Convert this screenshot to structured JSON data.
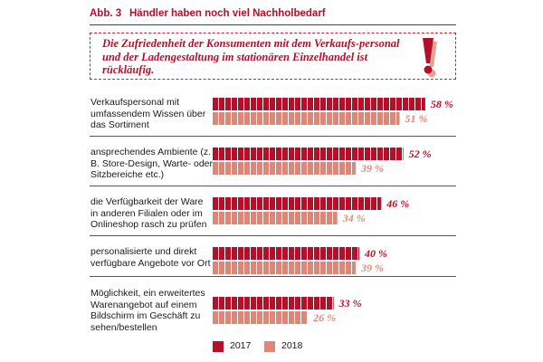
{
  "figure": {
    "number": "Abb. 3",
    "title": "Händler haben noch viel Nachholbedarf",
    "callout": "Die Zufriedenheit der Konsumenten mit dem Verkaufs-personal und der Ladengestaltung im stationären Einzelhandel ist rückläufig."
  },
  "colors": {
    "s2017": "#b5102a",
    "s2018": "#dc8878",
    "accent": "#b5102a"
  },
  "icons": {
    "callout_icon": "exclamation-mark-icon"
  },
  "chart_data": {
    "type": "bar",
    "orientation": "horizontal",
    "categories": [
      "Verkaufspersonal mit umfassendem Wissen über das Sortiment",
      "ansprechendes Ambiente (z. B. Store-Design, Warte- oder Sitzbereiche etc.)",
      "die Verfügbarkeit der Ware in anderen Filialen oder im Onlineshop rasch zu prüfen",
      "personalisierte und direkt verfügbare Angebote vor Ort",
      "Möglichkeit, ein erweitertes Warenangebot auf einem Bildschirm im Geschäft zu sehen/bestellen"
    ],
    "series": [
      {
        "name": "2017",
        "values": [
          58,
          52,
          46,
          40,
          33
        ]
      },
      {
        "name": "2018",
        "values": [
          51,
          39,
          34,
          39,
          26
        ]
      }
    ],
    "value_suffix": " %",
    "xlim": [
      0,
      100
    ],
    "legend": "bottom",
    "grid": false
  }
}
